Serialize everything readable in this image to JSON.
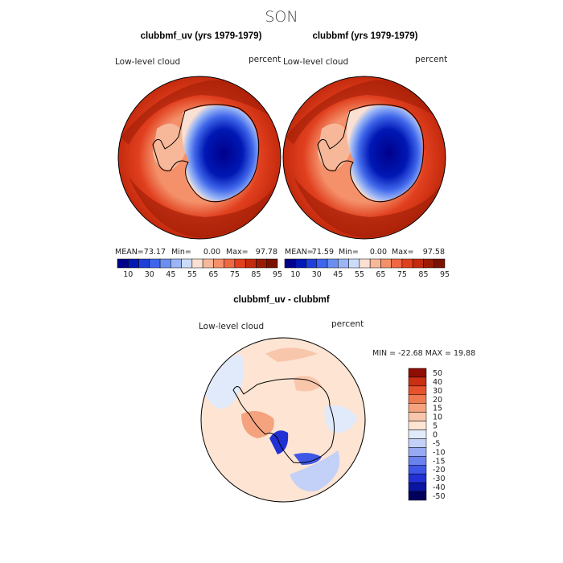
{
  "figure_title": "SON",
  "colors": {
    "abs_scale": [
      "#00008b",
      "#0018b4",
      "#1f3fd8",
      "#3f66ea",
      "#6b8ff0",
      "#9ab6f6",
      "#cbdcfa",
      "#f9e0d2",
      "#f7b89a",
      "#f4906a",
      "#ee6843",
      "#e1401f",
      "#c42a0d",
      "#9b1c05",
      "#7a1202"
    ],
    "diff_scale": [
      "#00005c",
      "#0a16a2",
      "#2131d4",
      "#3f57e6",
      "#6b81ee",
      "#97a9f2",
      "#c3d0f7",
      "#e1eafb",
      "#fde4d3",
      "#f8c6aa",
      "#f4a37e",
      "#ef7a52",
      "#e5522c",
      "#c92f12",
      "#8f0d02"
    ],
    "coast": "#000000"
  },
  "chart_data": [
    {
      "type": "heatmap",
      "title": "clubbmf_uv (yrs 1979-1979)",
      "left_label": "Low-level cloud",
      "right_label": "percent",
      "stats": {
        "mean_label": "MEAN=",
        "mean": "73.17",
        "min_label": "Min=",
        "min": "0.00",
        "max_label": "Max=",
        "max": "97.78"
      },
      "colorbar_ticks": [
        "10",
        "30",
        "45",
        "55",
        "65",
        "75",
        "85",
        "95"
      ],
      "projection": "south-polar stereographic",
      "zrange": [
        0,
        100
      ]
    },
    {
      "type": "heatmap",
      "title": "clubbmf (yrs 1979-1979)",
      "left_label": "Low-level cloud",
      "right_label": "percent",
      "stats": {
        "mean_label": "MEAN=",
        "mean": "71.59",
        "min_label": "Min=",
        "min": "0.00",
        "max_label": "Max=",
        "max": "97.58"
      },
      "colorbar_ticks": [
        "10",
        "30",
        "45",
        "55",
        "65",
        "75",
        "85",
        "95"
      ],
      "projection": "south-polar stereographic",
      "zrange": [
        0,
        100
      ]
    },
    {
      "type": "heatmap",
      "title": "clubbmf_uv - clubbmf",
      "left_label": "Low-level cloud",
      "right_label": "percent",
      "stats_text": "MIN = -22.68 MAX =  19.88",
      "colorbar_ticks": [
        "50",
        "40",
        "30",
        "20",
        "15",
        "10",
        "5",
        "0",
        "-5",
        "-10",
        "-15",
        "-20",
        "-30",
        "-40",
        "-50"
      ],
      "projection": "south-polar stereographic",
      "zrange": [
        -22.68,
        19.88
      ]
    }
  ]
}
